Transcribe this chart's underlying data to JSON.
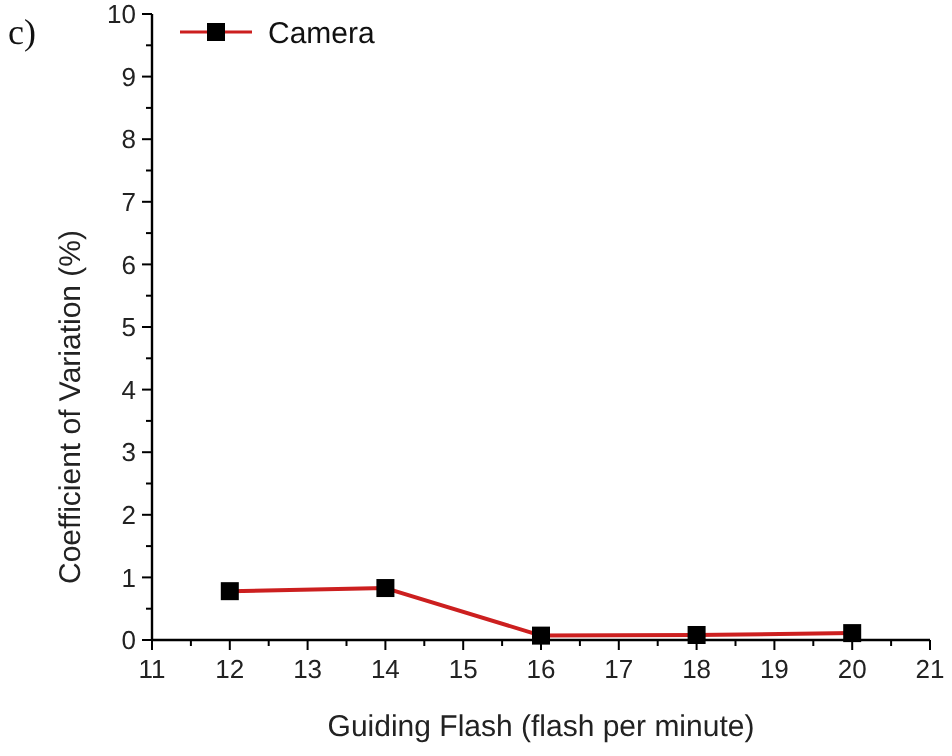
{
  "chart_data": {
    "type": "line",
    "xlabel": "Guiding Flash (flash per minute)",
    "ylabel": "Coefficient of Variation (%)",
    "annotations": [
      "c)"
    ],
    "x": [
      12,
      14,
      16,
      18,
      20
    ],
    "series": [
      {
        "name": "Camera",
        "color": "#cc1f1f",
        "values": [
          0.78,
          0.83,
          0.07,
          0.08,
          0.11
        ]
      }
    ],
    "xlim": [
      11,
      21
    ],
    "xticks": [
      11,
      {
        "value": 11.5,
        "label": null
      },
      12,
      {
        "value": 12.5,
        "label": null
      },
      13,
      {
        "value": 13.5,
        "label": null
      },
      14,
      {
        "value": 14.5,
        "label": null
      },
      15,
      {
        "value": 15.5,
        "label": null
      },
      16,
      {
        "value": 16.5,
        "label": null
      },
      17,
      {
        "value": 17.5,
        "label": null
      },
      18,
      {
        "value": 18.5,
        "label": null
      },
      19,
      {
        "value": 19.5,
        "label": null
      },
      20,
      {
        "value": 20.5,
        "label": null
      },
      21
    ],
    "ylim": [
      0,
      10
    ],
    "yticks": [
      0,
      {
        "value": 0.5,
        "label": null
      },
      1,
      {
        "value": 1.5,
        "label": null
      },
      2,
      {
        "value": 2.5,
        "label": null
      },
      3,
      {
        "value": 3.5,
        "label": null
      },
      4,
      {
        "value": 4.5,
        "label": null
      },
      5,
      {
        "value": 5.5,
        "label": null
      },
      6,
      {
        "value": 6.5,
        "label": null
      },
      7,
      {
        "value": 7.5,
        "label": null
      },
      8,
      {
        "value": 8.5,
        "label": null
      },
      9,
      {
        "value": 9.5,
        "label": null
      },
      10
    ],
    "marker": "square",
    "legend": "top left",
    "grid": false
  }
}
